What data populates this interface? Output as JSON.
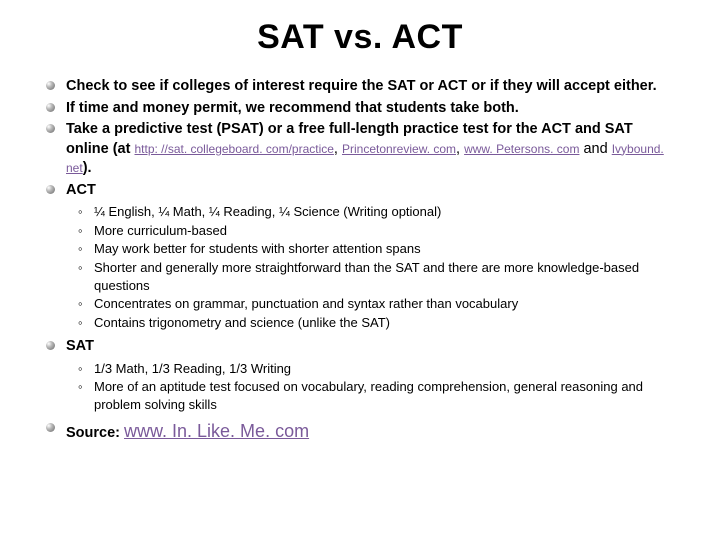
{
  "title": "SAT vs. ACT",
  "bullets": {
    "b1": "Check to see if colleges of interest require the SAT or ACT or if they will accept either.",
    "b2": "If time and money permit, we recommend that students take both.",
    "b3_pre": "Take a predictive test (PSAT) or a free full-length practice test for the ACT and SAT online (at ",
    "b3_l1": "http: //sat. collegeboard. com/practice",
    "b3_c1": ", ",
    "b3_l2": "Princetonreview. com",
    "b3_c2": ", ",
    "b3_l3": "www. Petersons. com",
    "b3_c3": " and ",
    "b3_l4": "Ivybound. net",
    "b3_post": ").",
    "b4": "ACT",
    "b5": "SAT",
    "src_pre": "Source: ",
    "src_link": "www. In. Like. Me. com"
  },
  "act": {
    "s1": "¼ English, ¼ Math, ¼ Reading, ¼ Science (Writing optional)",
    "s2": "More curriculum-based",
    "s3": "May work better for students with shorter attention spans",
    "s4": "Shorter and generally more straightforward than the SAT and there are more knowledge-based questions",
    "s5": "Concentrates on grammar, punctuation and syntax rather than vocabulary",
    "s6": "Contains trigonometry and science (unlike the SAT)"
  },
  "sat": {
    "s1": "1/3 Math, 1/3 Reading, 1/3 Writing",
    "s2": "More of an aptitude test focused on vocabulary, reading comprehension, general reasoning and problem solving skills"
  },
  "colors": {
    "link": "#7a5a9a",
    "text": "#000000",
    "bg": "#ffffff"
  }
}
